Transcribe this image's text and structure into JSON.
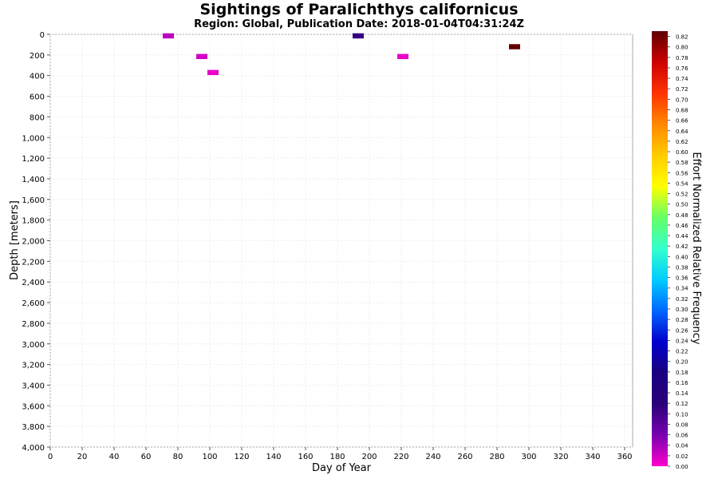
{
  "chart_data": {
    "type": "heatmap",
    "title": "Sightings of Paralichthys californicus",
    "subtitle": "Region: Global, Publication Date: 2018-01-04T04:31:24Z",
    "xlabel": "Day of Year",
    "ylabel": "Depth [meters]",
    "xlim": [
      0,
      365
    ],
    "ylim": [
      0,
      4000
    ],
    "y_inverted": true,
    "xticks": [
      "0",
      "20",
      "40",
      "60",
      "80",
      "100",
      "120",
      "140",
      "160",
      "180",
      "200",
      "220",
      "240",
      "260",
      "280",
      "300",
      "320",
      "340",
      "360"
    ],
    "yticks": [
      "0",
      "200",
      "400",
      "600",
      "800",
      "1,000",
      "1,200",
      "1,400",
      "1,600",
      "1,800",
      "2,000",
      "2,200",
      "2,400",
      "2,600",
      "2,800",
      "3,000",
      "3,200",
      "3,400",
      "3,600",
      "3,800",
      "4,000"
    ],
    "grid": true,
    "cells": [
      {
        "day": 74,
        "depth": 15,
        "value": 0.03
      },
      {
        "day": 95,
        "depth": 215,
        "value": 0.02
      },
      {
        "day": 102,
        "depth": 370,
        "value": 0.01
      },
      {
        "day": 193,
        "depth": 15,
        "value": 0.11
      },
      {
        "day": 221,
        "depth": 215,
        "value": 0.01
      },
      {
        "day": 291,
        "depth": 120,
        "value": 0.83
      }
    ],
    "colorbar": {
      "label": "Effort Normalized Relative Frequency",
      "min": 0.0,
      "max": 0.83,
      "ticks": [
        "0.00",
        "0.02",
        "0.04",
        "0.06",
        "0.08",
        "0.10",
        "0.12",
        "0.14",
        "0.16",
        "0.18",
        "0.20",
        "0.22",
        "0.24",
        "0.26",
        "0.28",
        "0.30",
        "0.32",
        "0.34",
        "0.36",
        "0.38",
        "0.40",
        "0.42",
        "0.44",
        "0.46",
        "0.48",
        "0.50",
        "0.52",
        "0.54",
        "0.56",
        "0.58",
        "0.60",
        "0.62",
        "0.64",
        "0.66",
        "0.68",
        "0.70",
        "0.72",
        "0.74",
        "0.76",
        "0.78",
        "0.80",
        "0.82"
      ],
      "colors": [
        "#ff00cc",
        "#7a00b0",
        "#2a007a",
        "#1a0080",
        "#0000cc",
        "#0066ff",
        "#00ccff",
        "#33ffcc",
        "#66ff66",
        "#ffff00",
        "#ffcc00",
        "#ff8800",
        "#ff3300",
        "#cc0000",
        "#600000"
      ]
    }
  }
}
